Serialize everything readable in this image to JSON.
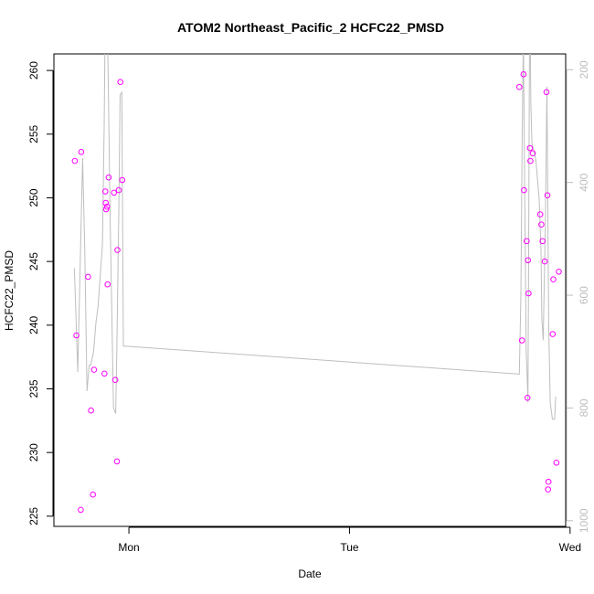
{
  "chart_data": {
    "type": "scatter",
    "title": "ATOM2 Northeast_Pacific_2 HCFC22_PMSD",
    "xlabel": "Date",
    "ylabel": "HCFC22_PMSD",
    "xlim": [
      -0.34,
      1.98
    ],
    "ylim": [
      224.2,
      261.3
    ],
    "y2lim": [
      1010,
      172
    ],
    "x_ticks": [
      {
        "value": 0,
        "label": "Mon"
      },
      {
        "value": 1,
        "label": "Tue"
      },
      {
        "value": 2,
        "label": "Wed"
      }
    ],
    "y_ticks": [
      225,
      230,
      235,
      240,
      245,
      250,
      255,
      260
    ],
    "y2_ticks": [
      200,
      400,
      600,
      800,
      1000
    ],
    "colors": {
      "points": "#ff00ff",
      "line": "#bebebe",
      "axis": "#000000",
      "right_axis": "#bdbdbd"
    },
    "series": [
      {
        "type": "points",
        "x": [
          -0.245,
          -0.238,
          -0.218,
          -0.216,
          -0.185,
          -0.172,
          -0.163,
          -0.158,
          -0.111,
          -0.107,
          -0.105,
          -0.103,
          -0.099,
          -0.097,
          -0.092,
          -0.068,
          -0.062,
          -0.054,
          -0.052,
          -0.046,
          -0.039,
          -0.03,
          1.77,
          1.782,
          1.789,
          1.791,
          1.803,
          1.807,
          1.809,
          1.812,
          1.818,
          1.82,
          1.831,
          1.865,
          1.87,
          1.875,
          1.885,
          1.893,
          1.897,
          1.924,
          1.938
        ],
        "y": [
          252.9,
          239.2,
          225.5,
          253.6,
          243.8,
          233.3,
          226.7,
          236.5,
          236.2,
          250.5,
          249.6,
          249.1,
          249.3,
          243.2,
          251.6,
          250.4,
          235.7,
          229.3,
          245.9,
          250.6,
          259.1,
          251.4,
          258.7,
          238.8,
          259.7,
          250.6,
          246.6,
          234.3,
          245.1,
          242.5,
          253.9,
          252.9,
          253.5,
          248.7,
          247.9,
          246.6,
          245.0,
          258.3,
          250.2,
          243.6,
          229.2
        ]
      },
      {
        "type": "points-extra",
        "x": [
          1.9,
          1.902,
          1.921,
          1.949
        ],
        "y": [
          227.1,
          227.7,
          239.3,
          244.2
        ]
      },
      {
        "type": "line",
        "axis": "right",
        "x": [
          -0.247,
          -0.232,
          -0.21,
          -0.2,
          -0.19,
          -0.18,
          -0.173,
          -0.16,
          -0.15,
          -0.14,
          -0.12,
          -0.112,
          -0.108,
          -0.1,
          -0.095,
          -0.085,
          -0.07,
          -0.06,
          -0.055,
          -0.045,
          -0.04,
          -0.032,
          -0.025,
          1.77,
          1.777,
          1.783,
          1.788,
          1.795,
          1.801,
          1.805,
          1.809,
          1.812,
          1.817,
          1.822,
          1.827,
          1.845,
          1.86,
          1.868,
          1.872,
          1.878,
          1.888,
          1.895,
          1.903,
          1.91,
          1.92,
          1.925,
          1.93,
          1.935
        ],
        "y": [
          552,
          736,
          357,
          522,
          770,
          724,
          724,
          700,
          650,
          620,
          510,
          300,
          130,
          140,
          180,
          470,
          800,
          810,
          700,
          430,
          245,
          240,
          690,
          740,
          600,
          320,
          140,
          440,
          700,
          740,
          790,
          560,
          40,
          260,
          330,
          360,
          430,
          520,
          640,
          680,
          470,
          230,
          650,
          790,
          820,
          820,
          820,
          780
        ]
      }
    ]
  }
}
